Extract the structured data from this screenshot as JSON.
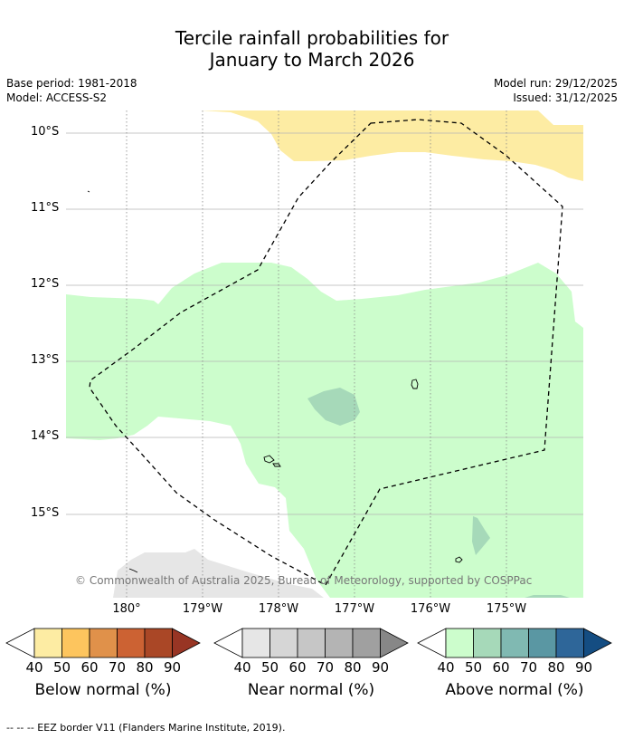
{
  "title": {
    "line1": "Tercile rainfall probabilities for",
    "line2": "January to March 2026"
  },
  "meta": {
    "base_period": "Base period: 1981-2018",
    "model": "Model: ACCESS-S2",
    "model_run": "Model run: 29/12/2025",
    "issued": "Issued: 31/12/2025"
  },
  "map": {
    "lat_labels": [
      "10°S",
      "11°S",
      "12°S",
      "13°S",
      "14°S",
      "15°S"
    ],
    "lon_labels": [
      "180°",
      "179°W",
      "178°W",
      "177°W",
      "176°W",
      "175°W"
    ],
    "copyright": "© Commonwealth of Australia 2025, Bureau of Meteorology, supported by COSPPac",
    "background_color": "#ffffff"
  },
  "legends": [
    {
      "title": "Below normal (%)",
      "ticks": [
        "40",
        "50",
        "60",
        "70",
        "80",
        "90"
      ],
      "colors": [
        "#fdeca3",
        "#fdc55e",
        "#e0914a",
        "#cc6233",
        "#aa4726",
        "#983524"
      ]
    },
    {
      "title": "Near normal (%)",
      "ticks": [
        "40",
        "50",
        "60",
        "70",
        "80",
        "90"
      ],
      "colors": [
        "#e6e6e6",
        "#d6d6d6",
        "#c6c6c6",
        "#b4b4b4",
        "#a0a0a0",
        "#878787"
      ]
    },
    {
      "title": "Above normal (%)",
      "ticks": [
        "40",
        "50",
        "60",
        "70",
        "80",
        "90"
      ],
      "colors": [
        "#ccfdcc",
        "#a6d9b9",
        "#80b9b2",
        "#5a97a3",
        "#2e6699",
        "#144d82"
      ]
    }
  ],
  "footnote": "--  --  -- EEZ border V11 (Flanders Marine Institute, 2019)."
}
